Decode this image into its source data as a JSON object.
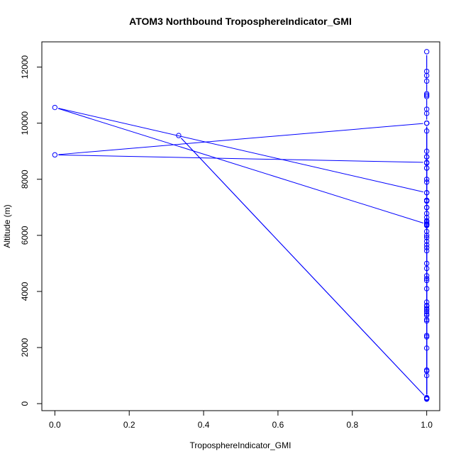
{
  "chart_data": {
    "type": "scatter",
    "title": "ATOM3 Northbound TroposphereIndicator_GMI",
    "xlabel": "TroposphereIndicator_GMI",
    "ylabel": "Altitude (m)",
    "xlim": [
      -0.035,
      1.035
    ],
    "ylim": [
      -250,
      12900
    ],
    "xticks": [
      0.0,
      0.2,
      0.4,
      0.6,
      0.8,
      1.0
    ],
    "xtick_labels": [
      "0.0",
      "0.2",
      "0.4",
      "0.6",
      "0.8",
      "1.0"
    ],
    "yticks": [
      0,
      2000,
      4000,
      6000,
      8000,
      10000,
      12000
    ],
    "ytick_labels": [
      "0",
      "2000",
      "4000",
      "6000",
      "8000",
      "10000",
      "12000"
    ],
    "connect_points": true,
    "series": [
      {
        "color": "#0000ff",
        "x": [
          1,
          1,
          1,
          1,
          1,
          1,
          1,
          1,
          1,
          1,
          1,
          1,
          1,
          1,
          1,
          1,
          1,
          1,
          1,
          1,
          1,
          1,
          1,
          1,
          1,
          1,
          1,
          1,
          1,
          1,
          1,
          1,
          1,
          1,
          1,
          1,
          1,
          1,
          1,
          1,
          1,
          1,
          1,
          1,
          1,
          1,
          1,
          1,
          1,
          1,
          1,
          1,
          1,
          1,
          1,
          1,
          1,
          0,
          1,
          1,
          1,
          1,
          0.333,
          1,
          1,
          1,
          1,
          1,
          1,
          0,
          1,
          1,
          1,
          1,
          1,
          1,
          1,
          1,
          1,
          1,
          1
        ],
        "y": [
          160,
          180,
          200,
          215,
          1160,
          1200,
          1980,
          2380,
          2430,
          2950,
          3150,
          3200,
          3280,
          3350,
          3400,
          3480,
          3620,
          4100,
          4390,
          4460,
          4560,
          4820,
          5450,
          5560,
          5660,
          5790,
          5920,
          6140,
          6350,
          6450,
          6520,
          6640,
          6780,
          6990,
          7220,
          7250,
          7520,
          7900,
          8400,
          8580,
          8800,
          9720,
          10000,
          10350,
          10500,
          10950,
          11050,
          11500,
          11700,
          11850,
          12550,
          11000,
          10000,
          8800,
          8400,
          7250,
          6400,
          10560,
          7520,
          10000,
          6400,
          200,
          9560,
          200,
          5000,
          3000,
          1000,
          200,
          8600,
          8870,
          10000,
          8800,
          200,
          6000,
          7000,
          8000,
          9000,
          6500,
          3500,
          200,
          6380
        ]
      }
    ]
  }
}
